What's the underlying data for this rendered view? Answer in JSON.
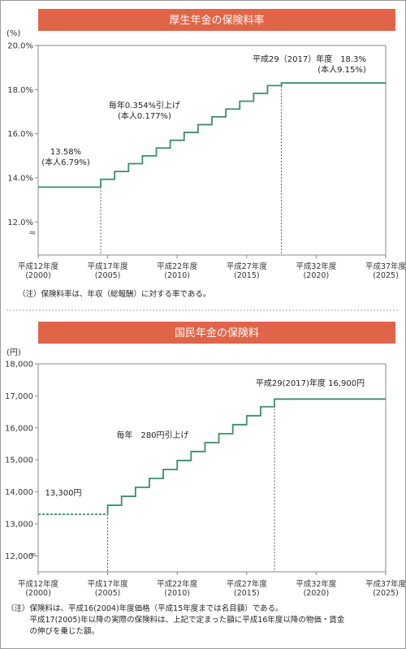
{
  "chart_data": [
    {
      "type": "line",
      "title": "厚生年金の保険料率",
      "unit_label": "(%)",
      "ylim": [
        10.5,
        20.0
      ],
      "y_ticks": [
        {
          "value": 20.0,
          "label": "20.0%"
        },
        {
          "value": 18.0,
          "label": "18.0%"
        },
        {
          "value": 16.0,
          "label": "16.0%"
        },
        {
          "value": 14.0,
          "label": "14.0%"
        },
        {
          "value": 12.0,
          "label": "12.0%"
        }
      ],
      "axis_break": "≈",
      "xlim": [
        2000,
        2025
      ],
      "x_ticks": [
        {
          "value": 2000,
          "line1": "平成12年度",
          "line2": "(2000)"
        },
        {
          "value": 2005,
          "line1": "平成17年度",
          "line2": "(2005)"
        },
        {
          "value": 2010,
          "line1": "平成22年度",
          "line2": "(2010)"
        },
        {
          "value": 2015,
          "line1": "平成27年度",
          "line2": "(2015)"
        },
        {
          "value": 2020,
          "line1": "平成32年度",
          "line2": "(2020)"
        },
        {
          "value": 2025,
          "line1": "平成37年度",
          "line2": "(2025)"
        }
      ],
      "series": [
        {
          "x": [
            2004.5,
            2005.5,
            2006.5,
            2007.5,
            2008.5,
            2009.5,
            2010.5,
            2011.5,
            2012.5,
            2013.5,
            2014.5,
            2015.5,
            2016.5
          ],
          "y": [
            13.934,
            14.288,
            14.642,
            14.996,
            15.35,
            15.704,
            16.058,
            16.412,
            16.766,
            17.12,
            17.474,
            17.828,
            18.182
          ],
          "start": {
            "x": 2000,
            "y": 13.58
          },
          "end": {
            "x": 2025,
            "y": 18.3
          },
          "final_step_x": 2017.5
        }
      ],
      "vlines": [
        2004.5,
        2017.5
      ],
      "annotations": [
        {
          "line1": "13.58%",
          "line2": "(本人6.79%)"
        },
        {
          "line1": "毎年0.354%引上げ",
          "line2": "(本人0.177%)"
        },
        {
          "line1": "平成29（2017）年度　18.3%",
          "line2": "(本人9.15%)"
        }
      ],
      "note": "（注）保険料率は、年収（総報酬）に対する率である。"
    },
    {
      "type": "line",
      "title": "国民年金の保険料",
      "unit_label": "(円)",
      "ylim": [
        11500,
        18000
      ],
      "y_ticks": [
        {
          "value": 18000,
          "label": "18,000"
        },
        {
          "value": 17000,
          "label": "17,000"
        },
        {
          "value": 16000,
          "label": "16,000"
        },
        {
          "value": 15000,
          "label": "15,000"
        },
        {
          "value": 14000,
          "label": "14,000"
        },
        {
          "value": 13000,
          "label": "13,000"
        },
        {
          "value": 12000,
          "label": "12,000"
        }
      ],
      "axis_break": "≈",
      "xlim": [
        2000,
        2025
      ],
      "x_ticks": [
        {
          "value": 2000,
          "line1": "平成12年度",
          "line2": "(2000)"
        },
        {
          "value": 2005,
          "line1": "平成17年度",
          "line2": "(2005)"
        },
        {
          "value": 2010,
          "line1": "平成22年度",
          "line2": "(2010)"
        },
        {
          "value": 2015,
          "line1": "平成27年度",
          "line2": "(2015)"
        },
        {
          "value": 2020,
          "line1": "平成32年度",
          "line2": "(2020)"
        },
        {
          "value": 2025,
          "line1": "平成37年度",
          "line2": "(2025)"
        }
      ],
      "series": [
        {
          "x": [
            2005,
            2006,
            2007,
            2008,
            2009,
            2010,
            2011,
            2012,
            2013,
            2014,
            2015,
            2016
          ],
          "y": [
            13580,
            13860,
            14140,
            14420,
            14700,
            14980,
            15260,
            15540,
            15820,
            16100,
            16380,
            16660
          ],
          "start": {
            "x": 2000,
            "y": 13300
          },
          "end": {
            "x": 2025,
            "y": 16900
          },
          "final_step_x": 2017
        }
      ],
      "vlines": [
        2005,
        2017
      ],
      "annotations": [
        {
          "line1": "13,300円"
        },
        {
          "line1": "毎年　280円引上げ"
        },
        {
          "line1": "平成29(2017)年度 16,900円"
        }
      ],
      "note_lines": [
        "（注）保険料は、平成16(2004)年度価格（平成15年度までは名目額）である。",
        "　　　平成17(2005)年以降の実際の保険料は、上記で定まった額に平成16年度以降の物価・賃金",
        "　　　の伸びを乗じた額。"
      ]
    }
  ]
}
